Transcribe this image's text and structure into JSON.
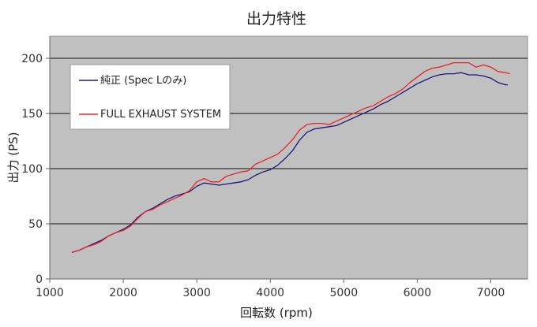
{
  "chart_data": {
    "type": "line",
    "title": "出力特性",
    "xlabel": "回転数 (rpm)",
    "ylabel": "出力 (PS)",
    "xlim": [
      1000,
      7500
    ],
    "ylim": [
      0,
      220
    ],
    "x_ticks": [
      1000,
      2000,
      3000,
      4000,
      5000,
      6000,
      7000
    ],
    "y_ticks": [
      0,
      50,
      100,
      150,
      200
    ],
    "grid": "horizontal",
    "legend_position": "top-left",
    "background_color": "#c0c0c0",
    "series": [
      {
        "name": "純正 (Spec Lのみ)",
        "color": "#1a1a7a",
        "points": [
          [
            1300,
            24
          ],
          [
            1400,
            26
          ],
          [
            1500,
            29
          ],
          [
            1600,
            32
          ],
          [
            1700,
            35
          ],
          [
            1800,
            39
          ],
          [
            1900,
            42
          ],
          [
            2000,
            45
          ],
          [
            2100,
            49
          ],
          [
            2200,
            56
          ],
          [
            2300,
            61
          ],
          [
            2400,
            64
          ],
          [
            2500,
            68
          ],
          [
            2600,
            72
          ],
          [
            2700,
            75
          ],
          [
            2800,
            77
          ],
          [
            2900,
            79
          ],
          [
            3000,
            84
          ],
          [
            3100,
            87
          ],
          [
            3200,
            86
          ],
          [
            3300,
            85
          ],
          [
            3400,
            86
          ],
          [
            3500,
            87
          ],
          [
            3600,
            88
          ],
          [
            3700,
            90
          ],
          [
            3800,
            94
          ],
          [
            3900,
            97
          ],
          [
            4000,
            99
          ],
          [
            4100,
            103
          ],
          [
            4200,
            109
          ],
          [
            4300,
            116
          ],
          [
            4400,
            126
          ],
          [
            4500,
            133
          ],
          [
            4600,
            136
          ],
          [
            4700,
            137
          ],
          [
            4800,
            138
          ],
          [
            4900,
            139
          ],
          [
            5000,
            142
          ],
          [
            5100,
            145
          ],
          [
            5200,
            148
          ],
          [
            5300,
            151
          ],
          [
            5400,
            154
          ],
          [
            5500,
            158
          ],
          [
            5600,
            161
          ],
          [
            5700,
            165
          ],
          [
            5800,
            169
          ],
          [
            5900,
            173
          ],
          [
            6000,
            177
          ],
          [
            6100,
            180
          ],
          [
            6200,
            183
          ],
          [
            6300,
            185
          ],
          [
            6400,
            186
          ],
          [
            6500,
            186
          ],
          [
            6600,
            187
          ],
          [
            6700,
            185
          ],
          [
            6800,
            185
          ],
          [
            6900,
            184
          ],
          [
            7000,
            182
          ],
          [
            7100,
            178
          ],
          [
            7200,
            176
          ],
          [
            7230,
            176
          ]
        ]
      },
      {
        "name": "FULL EXHAUST SYSTEM",
        "color": "#e8252a",
        "points": [
          [
            1300,
            24
          ],
          [
            1400,
            26
          ],
          [
            1500,
            29
          ],
          [
            1600,
            31
          ],
          [
            1700,
            34
          ],
          [
            1800,
            39
          ],
          [
            1900,
            42
          ],
          [
            2000,
            44
          ],
          [
            2100,
            48
          ],
          [
            2200,
            55
          ],
          [
            2300,
            61
          ],
          [
            2400,
            63
          ],
          [
            2500,
            67
          ],
          [
            2600,
            70
          ],
          [
            2700,
            73
          ],
          [
            2800,
            76
          ],
          [
            2900,
            80
          ],
          [
            3000,
            88
          ],
          [
            3100,
            91
          ],
          [
            3200,
            88
          ],
          [
            3300,
            88
          ],
          [
            3400,
            93
          ],
          [
            3500,
            95
          ],
          [
            3600,
            97
          ],
          [
            3700,
            98
          ],
          [
            3800,
            104
          ],
          [
            3900,
            107
          ],
          [
            4000,
            110
          ],
          [
            4100,
            113
          ],
          [
            4200,
            119
          ],
          [
            4300,
            126
          ],
          [
            4400,
            135
          ],
          [
            4500,
            140
          ],
          [
            4600,
            141
          ],
          [
            4700,
            141
          ],
          [
            4800,
            140
          ],
          [
            4900,
            143
          ],
          [
            5000,
            146
          ],
          [
            5100,
            149
          ],
          [
            5200,
            152
          ],
          [
            5300,
            155
          ],
          [
            5400,
            157
          ],
          [
            5500,
            161
          ],
          [
            5600,
            165
          ],
          [
            5700,
            168
          ],
          [
            5800,
            172
          ],
          [
            5900,
            178
          ],
          [
            6000,
            183
          ],
          [
            6100,
            188
          ],
          [
            6200,
            191
          ],
          [
            6300,
            192
          ],
          [
            6400,
            194
          ],
          [
            6500,
            196
          ],
          [
            6600,
            196
          ],
          [
            6700,
            196
          ],
          [
            6800,
            192
          ],
          [
            6900,
            194
          ],
          [
            7000,
            192
          ],
          [
            7100,
            188
          ],
          [
            7200,
            187
          ],
          [
            7260,
            186
          ]
        ]
      }
    ]
  }
}
